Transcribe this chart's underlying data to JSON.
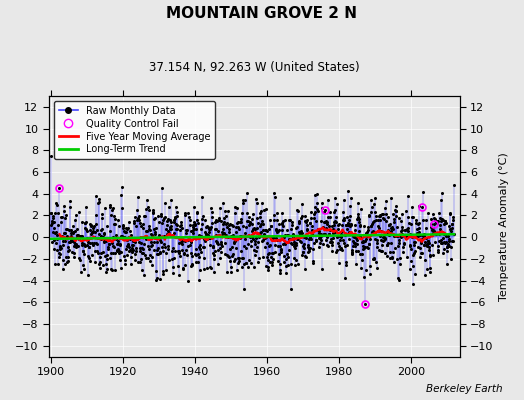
{
  "title": "MOUNTAIN GROVE 2 N",
  "subtitle": "37.154 N, 92.263 W (United States)",
  "ylabel": "Temperature Anomaly (°C)",
  "credit": "Berkeley Earth",
  "year_start": 1900,
  "year_end": 2012,
  "ylim": [
    -11,
    13
  ],
  "yticks": [
    -10,
    -8,
    -6,
    -4,
    -2,
    0,
    2,
    4,
    6,
    8,
    10,
    12
  ],
  "xticks": [
    1900,
    1920,
    1940,
    1960,
    1980,
    2000
  ],
  "bg_color": "#e8e8e8",
  "plot_bg_color": "#e8e8e8",
  "raw_line_color": "#4444ff",
  "raw_marker_color": "black",
  "qc_fail_color": "magenta",
  "moving_avg_color": "red",
  "trend_color": "#00cc00",
  "noise_std": 2.2,
  "seed": 137
}
